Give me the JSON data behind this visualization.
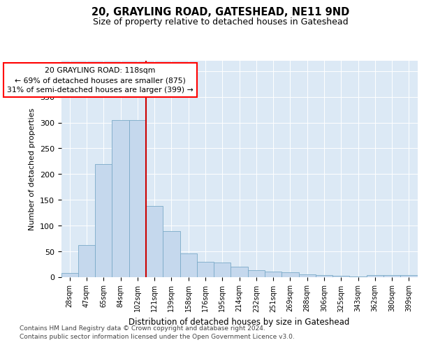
{
  "title1": "20, GRAYLING ROAD, GATESHEAD, NE11 9ND",
  "title2": "Size of property relative to detached houses in Gateshead",
  "xlabel": "Distribution of detached houses by size in Gateshead",
  "ylabel": "Number of detached properties",
  "categories": [
    "28sqm",
    "47sqm",
    "65sqm",
    "84sqm",
    "102sqm",
    "121sqm",
    "139sqm",
    "158sqm",
    "176sqm",
    "195sqm",
    "214sqm",
    "232sqm",
    "251sqm",
    "269sqm",
    "288sqm",
    "306sqm",
    "325sqm",
    "343sqm",
    "362sqm",
    "380sqm",
    "399sqm"
  ],
  "values": [
    8,
    63,
    220,
    305,
    305,
    138,
    89,
    46,
    30,
    29,
    20,
    14,
    11,
    10,
    5,
    4,
    3,
    2,
    4,
    4,
    4
  ],
  "bar_color": "#c9d9eb",
  "bar_edge_color": "#6fa8cc",
  "annotation_line1": "20 GRAYLING ROAD: 118sqm",
  "annotation_line2": "← 69% of detached houses are smaller (875)",
  "annotation_line3": "31% of semi-detached houses are larger (399) →",
  "ylim": [
    0,
    420
  ],
  "yticks": [
    0,
    50,
    100,
    150,
    200,
    250,
    300,
    350,
    400
  ],
  "bg_color": "#dce9f5",
  "bar_color_fill": "#c5d8ed",
  "bar_edge": "#7aaac8",
  "red_line_color": "#cc0000",
  "footer1": "Contains HM Land Registry data © Crown copyright and database right 2024.",
  "footer2": "Contains public sector information licensed under the Open Government Licence v3.0."
}
